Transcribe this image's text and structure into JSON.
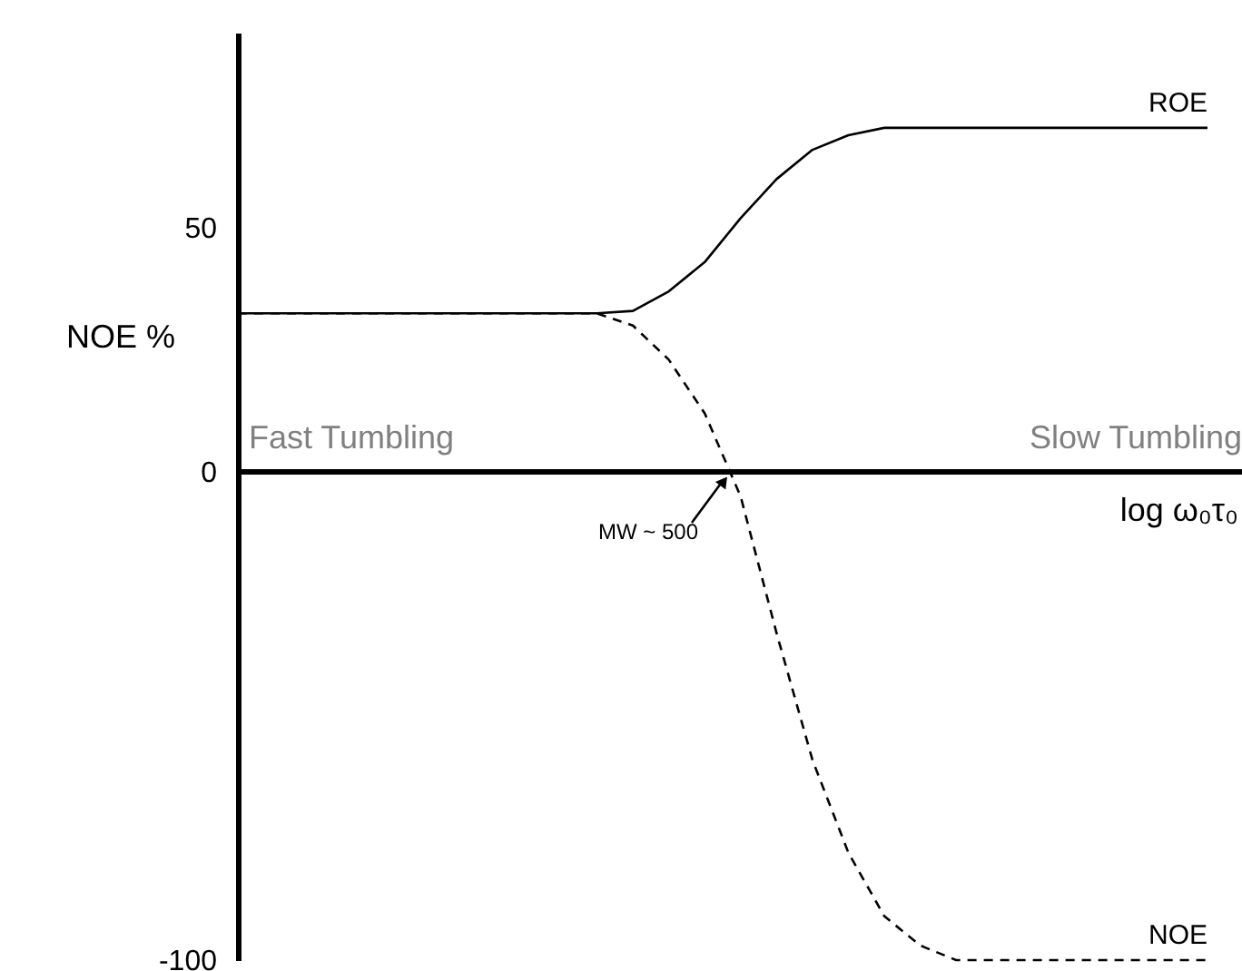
{
  "chart_data": {
    "type": "line",
    "ylabel": "NOE %",
    "xlabel": "log ω₀τ₀",
    "categories": [
      null,
      null,
      null,
      null,
      null,
      null,
      null,
      null,
      null,
      null,
      null,
      null,
      null,
      null,
      null,
      null,
      null,
      null,
      null,
      null,
      null,
      null,
      null,
      null,
      null,
      null,
      null,
      null
    ],
    "series": [
      {
        "name": "ROE",
        "color": "#000000",
        "line_style": "solid",
        "values": [
          32.5,
          32.5,
          32.5,
          32.5,
          32.5,
          32.5,
          32.5,
          32.5,
          32.5,
          32.5,
          32.5,
          33,
          37,
          43,
          52,
          60,
          66,
          69,
          70.5,
          70.5,
          70.5,
          70.5,
          70.5,
          70.5,
          70.5,
          70.5,
          70.5,
          70.5
        ]
      },
      {
        "name": "NOE",
        "color": "#000000",
        "line_style": "dashed",
        "values": [
          32.5,
          32.5,
          32.5,
          32.5,
          32.5,
          32.5,
          32.5,
          32.5,
          32.5,
          32.5,
          32.5,
          30,
          23,
          12,
          -5,
          -33,
          -59,
          -78,
          -91,
          -97,
          -100,
          -100,
          -100,
          -100,
          -100,
          -100,
          -100,
          -100
        ]
      }
    ],
    "ylim": [
      -100,
      90
    ],
    "yticks": [
      -100,
      0,
      50
    ],
    "ref_lines": [
      {
        "axis": "y",
        "value": 0
      }
    ],
    "annotations": [
      "Fast Tumbling",
      "Slow Tumbling",
      {
        "text": "MW ~ 500",
        "y": 0
      }
    ],
    "tick_labels": "y",
    "grid": false,
    "marker": "none"
  }
}
